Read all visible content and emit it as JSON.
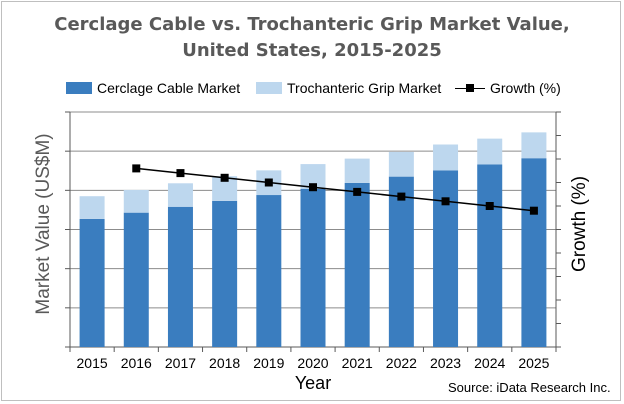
{
  "chart_data": {
    "type": "bar",
    "stacked": true,
    "title_line1": "Cerclage Cable vs. Trochanteric Grip Market Value,",
    "title_line2": "United States, 2015-2025",
    "xlabel": "Year",
    "ylabel": "Market Value (US$M)",
    "y2label": "Growth (%)",
    "source": "Source: iData Research Inc.",
    "categories": [
      "2015",
      "2016",
      "2017",
      "2018",
      "2019",
      "2020",
      "2021",
      "2022",
      "2023",
      "2024",
      "2025"
    ],
    "series": [
      {
        "name": "Cerclage Cable Market",
        "type": "bar",
        "color": "#3a7dbf",
        "values": [
          3.27,
          3.43,
          3.58,
          3.73,
          3.88,
          4.04,
          4.19,
          4.35,
          4.51,
          4.66,
          4.82
        ]
      },
      {
        "name": "Trochanteric Grip Market",
        "type": "bar",
        "color": "#bdd7ee",
        "values": [
          0.58,
          0.58,
          0.6,
          0.63,
          0.63,
          0.63,
          0.62,
          0.63,
          0.66,
          0.66,
          0.66
        ]
      },
      {
        "name": "Growth (%)",
        "type": "line",
        "axis": "secondary",
        "color": "#000000",
        "values": [
          null,
          7.6,
          7.4,
          7.2,
          7.0,
          6.8,
          6.6,
          6.4,
          6.2,
          6.0,
          5.8
        ]
      }
    ],
    "ylim": [
      0,
      6
    ],
    "y2lim": [
      0,
      10
    ],
    "legend_position": "top",
    "grid": true
  }
}
